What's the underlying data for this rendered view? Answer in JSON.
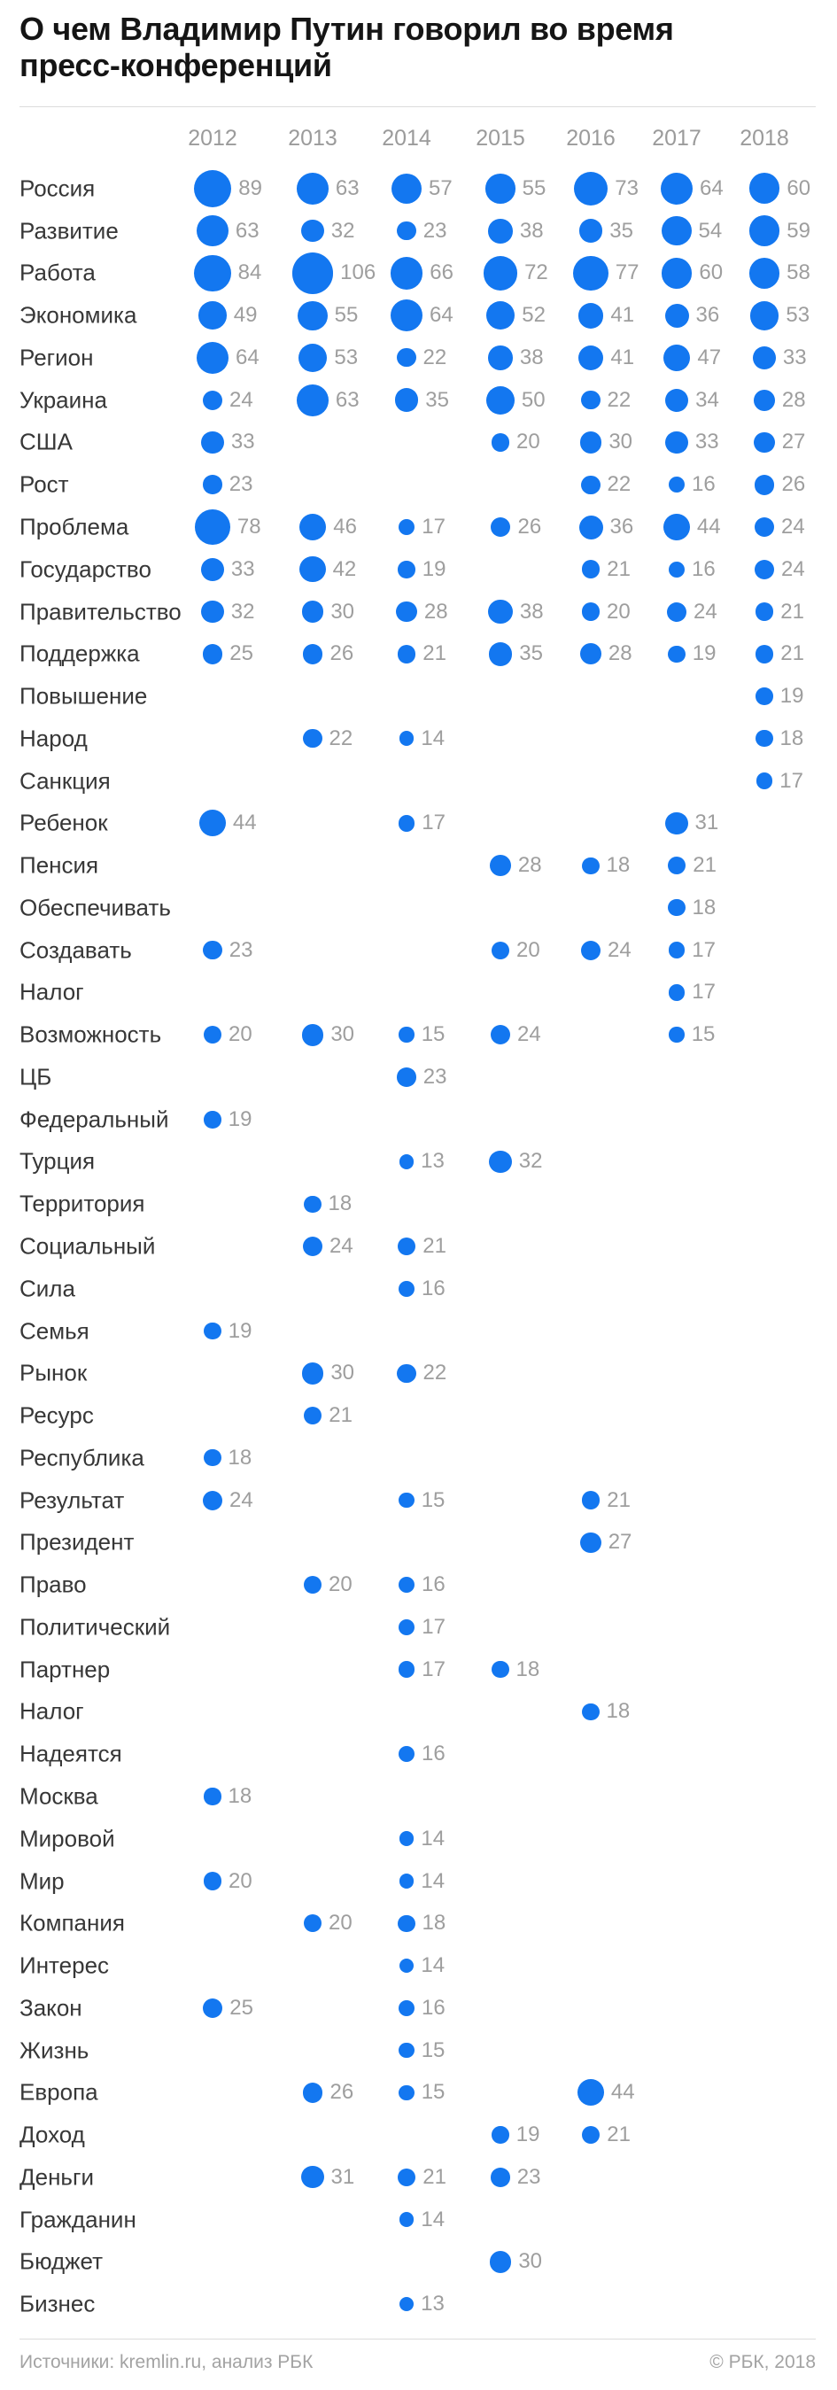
{
  "title": "О чем Владимир Путин говорил во время пресс-конференций",
  "footer": {
    "source": "Источники: kremlin.ru, анализ РБК",
    "copyright": "© РБК, 2018"
  },
  "colors": {
    "bubble": "#1377f0",
    "value_label": "#9e9e9e",
    "row_label": "#373737",
    "year_label": "#9b9b9b",
    "title": "#151515",
    "divider": "#dcdcdc"
  },
  "chart_data": {
    "type": "bubble-matrix",
    "title": "О чем Владимир Путин говорил во время пресс-конференций",
    "legend_position": "none",
    "grid": false,
    "x_categories": [
      "2012",
      "2013",
      "2014",
      "2015",
      "2016",
      "2017",
      "2018"
    ],
    "value_meaning": "word frequency during annual press conferences",
    "rows": [
      {
        "label": "Россия",
        "values": [
          89,
          63,
          57,
          55,
          73,
          64,
          60
        ]
      },
      {
        "label": "Развитие",
        "values": [
          63,
          32,
          23,
          38,
          35,
          54,
          59
        ]
      },
      {
        "label": "Работа",
        "values": [
          84,
          106,
          66,
          72,
          77,
          60,
          58
        ]
      },
      {
        "label": "Экономика",
        "values": [
          49,
          55,
          64,
          52,
          41,
          36,
          53
        ]
      },
      {
        "label": "Регион",
        "values": [
          64,
          53,
          22,
          38,
          41,
          47,
          33
        ]
      },
      {
        "label": "Украина",
        "values": [
          24,
          63,
          35,
          50,
          22,
          34,
          28
        ]
      },
      {
        "label": "США",
        "values": [
          33,
          null,
          null,
          20,
          30,
          33,
          27
        ]
      },
      {
        "label": "Рост",
        "values": [
          23,
          null,
          null,
          null,
          22,
          16,
          26
        ]
      },
      {
        "label": "Проблема",
        "values": [
          78,
          46,
          17,
          26,
          36,
          44,
          24
        ]
      },
      {
        "label": "Государство",
        "values": [
          33,
          42,
          19,
          null,
          21,
          16,
          24
        ]
      },
      {
        "label": "Правительство",
        "values": [
          32,
          30,
          28,
          38,
          20,
          24,
          21
        ]
      },
      {
        "label": "Поддержка",
        "values": [
          25,
          26,
          21,
          35,
          28,
          19,
          21
        ]
      },
      {
        "label": "Повышение",
        "values": [
          null,
          null,
          null,
          null,
          null,
          null,
          19
        ]
      },
      {
        "label": "Народ",
        "values": [
          null,
          22,
          14,
          null,
          null,
          null,
          18
        ]
      },
      {
        "label": "Санкция",
        "values": [
          null,
          null,
          null,
          null,
          null,
          null,
          17
        ]
      },
      {
        "label": "Ребенок",
        "values": [
          44,
          null,
          17,
          null,
          null,
          31,
          null
        ]
      },
      {
        "label": "Пенсия",
        "values": [
          null,
          null,
          null,
          28,
          18,
          21,
          null
        ]
      },
      {
        "label": "Обеспечивать",
        "values": [
          null,
          null,
          null,
          null,
          null,
          18,
          null
        ]
      },
      {
        "label": "Создавать",
        "values": [
          23,
          null,
          null,
          20,
          24,
          17,
          null
        ]
      },
      {
        "label": "Налог",
        "values": [
          null,
          null,
          null,
          null,
          null,
          17,
          null
        ]
      },
      {
        "label": "Возможность",
        "values": [
          20,
          30,
          15,
          24,
          null,
          15,
          null
        ]
      },
      {
        "label": "ЦБ",
        "values": [
          null,
          null,
          23,
          null,
          null,
          null,
          null
        ]
      },
      {
        "label": "Федеральный",
        "values": [
          19,
          null,
          null,
          null,
          null,
          null,
          null
        ]
      },
      {
        "label": "Турция",
        "values": [
          null,
          null,
          13,
          32,
          null,
          null,
          null
        ]
      },
      {
        "label": "Территория",
        "values": [
          null,
          18,
          null,
          null,
          null,
          null,
          null
        ]
      },
      {
        "label": "Социальный",
        "values": [
          null,
          24,
          21,
          null,
          null,
          null,
          null
        ]
      },
      {
        "label": "Сила",
        "values": [
          null,
          null,
          16,
          null,
          null,
          null,
          null
        ]
      },
      {
        "label": "Семья",
        "values": [
          19,
          null,
          null,
          null,
          null,
          null,
          null
        ]
      },
      {
        "label": "Рынок",
        "values": [
          null,
          30,
          22,
          null,
          null,
          null,
          null
        ]
      },
      {
        "label": "Ресурс",
        "values": [
          null,
          21,
          null,
          null,
          null,
          null,
          null
        ]
      },
      {
        "label": "Республика",
        "values": [
          18,
          null,
          null,
          null,
          null,
          null,
          null
        ]
      },
      {
        "label": "Результат",
        "values": [
          24,
          null,
          15,
          null,
          21,
          null,
          null
        ]
      },
      {
        "label": "Президент",
        "values": [
          null,
          null,
          null,
          null,
          27,
          null,
          null
        ]
      },
      {
        "label": "Право",
        "values": [
          null,
          20,
          16,
          null,
          null,
          null,
          null
        ]
      },
      {
        "label": "Политический",
        "values": [
          null,
          null,
          17,
          null,
          null,
          null,
          null
        ]
      },
      {
        "label": "Партнер",
        "values": [
          null,
          null,
          17,
          18,
          null,
          null,
          null
        ]
      },
      {
        "label": "Налог",
        "values": [
          null,
          null,
          null,
          null,
          18,
          null,
          null
        ]
      },
      {
        "label": "Надеятся",
        "values": [
          null,
          null,
          16,
          null,
          null,
          null,
          null
        ]
      },
      {
        "label": "Москва",
        "values": [
          18,
          null,
          null,
          null,
          null,
          null,
          null
        ]
      },
      {
        "label": "Мировой",
        "values": [
          null,
          null,
          14,
          null,
          null,
          null,
          null
        ]
      },
      {
        "label": "Мир",
        "values": [
          20,
          null,
          14,
          null,
          null,
          null,
          null
        ]
      },
      {
        "label": "Компания",
        "values": [
          null,
          20,
          18,
          null,
          null,
          null,
          null
        ]
      },
      {
        "label": "Интерес",
        "values": [
          null,
          null,
          14,
          null,
          null,
          null,
          null
        ]
      },
      {
        "label": "Закон",
        "values": [
          25,
          null,
          16,
          null,
          null,
          null,
          null
        ]
      },
      {
        "label": "Жизнь",
        "values": [
          null,
          null,
          15,
          null,
          null,
          null,
          null
        ]
      },
      {
        "label": "Европа",
        "values": [
          null,
          26,
          15,
          null,
          44,
          null,
          null
        ]
      },
      {
        "label": "Доход",
        "values": [
          null,
          null,
          null,
          19,
          21,
          null,
          null
        ]
      },
      {
        "label": "Деньги",
        "values": [
          null,
          31,
          21,
          23,
          null,
          null,
          null
        ]
      },
      {
        "label": "Гражданин",
        "values": [
          null,
          null,
          14,
          null,
          null,
          null,
          null
        ]
      },
      {
        "label": "Бюджет",
        "values": [
          null,
          null,
          null,
          30,
          null,
          null,
          null
        ]
      },
      {
        "label": "Бизнес",
        "values": [
          null,
          null,
          13,
          null,
          null,
          null,
          null
        ]
      }
    ]
  }
}
